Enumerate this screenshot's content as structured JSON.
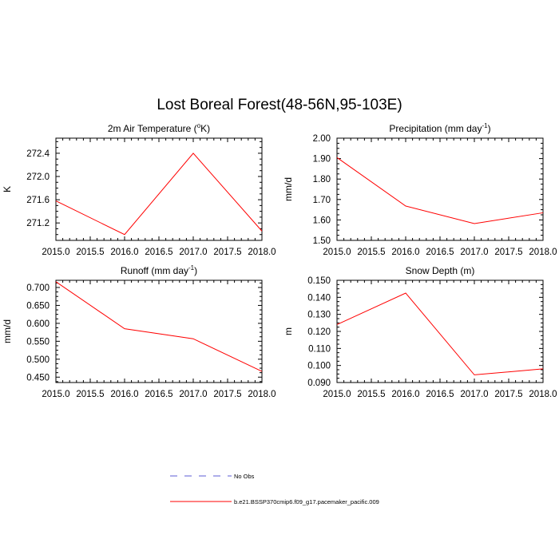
{
  "figure": {
    "title": "Lost Boreal Forest(48-56N,95-103E)"
  },
  "legend": {
    "entries": [
      {
        "label": "No Obs",
        "style": "dashed",
        "color": "#5b5bd6"
      },
      {
        "label": "b.e21.BSSP370cmip6.f09_g17.pacemaker_pacific.009",
        "style": "solid",
        "color": "#ff0000"
      }
    ]
  },
  "chart_data": [
    {
      "type": "line",
      "title_parts": [
        "2m Air Temperature (",
        "o",
        "K)"
      ],
      "ylabel": "K",
      "xlim": [
        2015,
        2018
      ],
      "ylim": [
        270.9,
        272.66
      ],
      "xticks": [
        "2015.0",
        "2015.5",
        "2016.0",
        "2016.5",
        "2017.0",
        "2017.5",
        "2018.0"
      ],
      "yticks": [
        "271.2",
        "271.6",
        "272.0",
        "272.4"
      ],
      "series": [
        {
          "name": "b.e21.BSSP370cmip6.f09_g17.pacemaker_pacific.009",
          "color": "#ff0000",
          "x": [
            2015,
            2016,
            2017,
            2018
          ],
          "y": [
            271.58,
            271.0,
            272.4,
            271.06
          ]
        }
      ]
    },
    {
      "type": "line",
      "title_parts": [
        "Precipitation (mm day",
        "-1",
        ")"
      ],
      "ylabel": "mm/d",
      "xlim": [
        2015,
        2018
      ],
      "ylim": [
        1.5,
        2.0
      ],
      "xticks": [
        "2015.0",
        "2015.5",
        "2016.0",
        "2016.5",
        "2017.0",
        "2017.5",
        "2018.0"
      ],
      "yticks": [
        "1.50",
        "1.60",
        "1.70",
        "1.80",
        "1.90",
        "2.00"
      ],
      "series": [
        {
          "name": "b.e21.BSSP370cmip6.f09_g17.pacemaker_pacific.009",
          "color": "#ff0000",
          "x": [
            2015,
            2016,
            2017,
            2018
          ],
          "y": [
            1.905,
            1.668,
            1.582,
            1.635
          ]
        }
      ]
    },
    {
      "type": "line",
      "title_parts": [
        "Runoff (mm day",
        "-1",
        ")"
      ],
      "ylabel": "mm/d",
      "xlim": [
        2015,
        2018
      ],
      "ylim": [
        0.435,
        0.72
      ],
      "xticks": [
        "2015.0",
        "2015.5",
        "2016.0",
        "2016.5",
        "2017.0",
        "2017.5",
        "2018.0"
      ],
      "yticks": [
        "0.450",
        "0.500",
        "0.550",
        "0.600",
        "0.650",
        "0.700"
      ],
      "series": [
        {
          "name": "b.e21.BSSP370cmip6.f09_g17.pacemaker_pacific.009",
          "color": "#ff0000",
          "x": [
            2015,
            2016,
            2017,
            2018
          ],
          "y": [
            0.716,
            0.585,
            0.557,
            0.466
          ]
        }
      ]
    },
    {
      "type": "line",
      "title_parts": [
        "Snow Depth (m)"
      ],
      "ylabel": "m",
      "xlim": [
        2015,
        2018
      ],
      "ylim": [
        0.09,
        0.15
      ],
      "xticks": [
        "2015.0",
        "2015.5",
        "2016.0",
        "2016.5",
        "2017.0",
        "2017.5",
        "2018.0"
      ],
      "yticks": [
        "0.090",
        "0.100",
        "0.110",
        "0.120",
        "0.130",
        "0.140",
        "0.150"
      ],
      "series": [
        {
          "name": "b.e21.BSSP370cmip6.f09_g17.pacemaker_pacific.009",
          "color": "#ff0000",
          "x": [
            2015,
            2016,
            2017,
            2018
          ],
          "y": [
            0.124,
            0.1425,
            0.0945,
            0.098
          ]
        }
      ]
    }
  ]
}
